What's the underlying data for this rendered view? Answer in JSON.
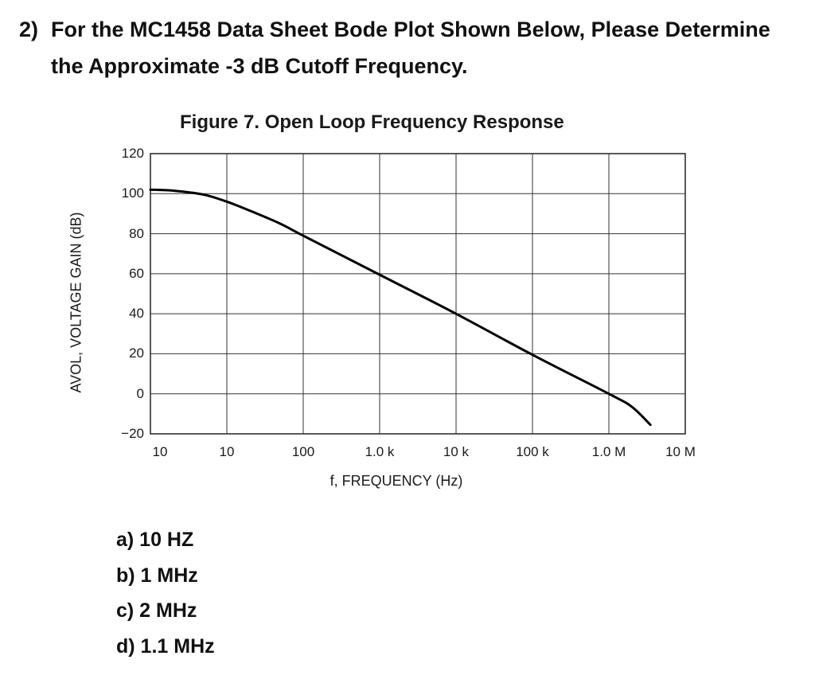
{
  "question": {
    "number": "2)",
    "text": "For the MC1458 Data Sheet Bode Plot Shown Below, Please Determine the Approximate -3 dB Cutoff Frequency."
  },
  "choices": [
    {
      "text": "a) 10 HZ"
    },
    {
      "text": "b) 1 MHz"
    },
    {
      "text": "c) 2 MHz"
    },
    {
      "text": "d) 1.1 MHz"
    }
  ],
  "chart_data": {
    "type": "line",
    "title": "Figure 7. Open Loop Frequency Response",
    "xlabel": "f, FREQUENCY (Hz)",
    "ylabel": "AVOL, VOLTAGE GAIN (dB)",
    "x_scale": "log",
    "xlim": [
      1,
      10000000
    ],
    "ylim": [
      -20,
      120
    ],
    "x_tick_labels": [
      "10",
      "10",
      "100",
      "1.0 k",
      "10 k",
      "100 k",
      "1.0 M",
      "10 M"
    ],
    "y_tick_labels": [
      "120",
      "100",
      "80",
      "60",
      "40",
      "20",
      "0",
      "-20"
    ],
    "grid": true,
    "series": [
      {
        "color": "#000000",
        "points": [
          {
            "x": 1,
            "y": 102
          },
          {
            "x": 2,
            "y": 101.5
          },
          {
            "x": 5,
            "y": 99.5
          },
          {
            "x": 10,
            "y": 96
          },
          {
            "x": 20,
            "y": 91.5
          },
          {
            "x": 50,
            "y": 85
          },
          {
            "x": 100,
            "y": 79
          },
          {
            "x": 1000,
            "y": 59.5
          },
          {
            "x": 10000,
            "y": 40
          },
          {
            "x": 100000,
            "y": 19.5
          },
          {
            "x": 1000000,
            "y": 0
          },
          {
            "x": 2000000,
            "y": -6.5
          },
          {
            "x": 3500000,
            "y": -15.5
          }
        ]
      }
    ]
  }
}
